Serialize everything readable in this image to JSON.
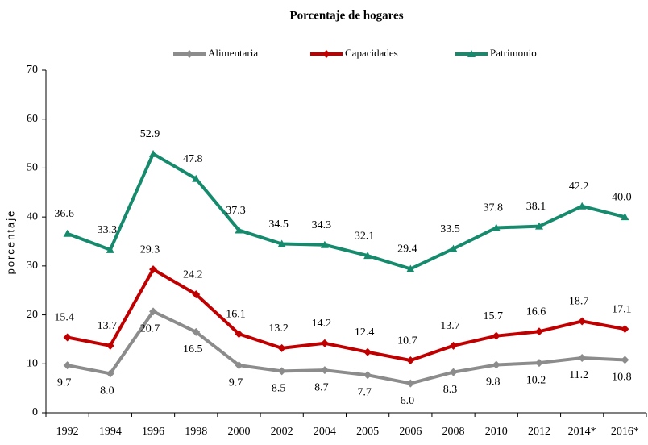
{
  "chart_data": {
    "type": "line",
    "title": "Porcentaje de hogares",
    "y_label": "porcentaje",
    "categories": [
      "1992",
      "1994",
      "1996",
      "1998",
      "2000",
      "2002",
      "2004",
      "2005",
      "2006",
      "2008",
      "2010",
      "2012",
      "2014*",
      "2016*"
    ],
    "series": [
      {
        "name": "Alimentaria",
        "color": "#8c8c8c",
        "label_position": "below",
        "values": [
          9.7,
          8.0,
          20.7,
          16.5,
          9.7,
          8.5,
          8.7,
          7.7,
          6.0,
          8.3,
          9.8,
          10.2,
          11.2,
          10.8
        ],
        "value_labels": [
          "9.7",
          "8.0",
          "20.7",
          "16.5",
          "9.7",
          "8.5",
          "8.7",
          "7.7",
          "6.0",
          "8.3",
          "9.8",
          "10.2",
          "11.2",
          "10.8"
        ]
      },
      {
        "name": "Capacidades",
        "color": "#c00000",
        "label_position": "above",
        "values": [
          15.4,
          13.7,
          29.3,
          24.2,
          16.1,
          13.2,
          14.2,
          12.4,
          10.7,
          13.7,
          15.7,
          16.6,
          18.7,
          17.1
        ],
        "value_labels": [
          "15.4",
          "13.7",
          "29.3",
          "24.2",
          "16.1",
          "13.2",
          "14.2",
          "12.4",
          "10.7",
          "13.7",
          "15.7",
          "16.6",
          "18.7",
          "17.1"
        ]
      },
      {
        "name": "Patrimonio",
        "color": "#168a6c",
        "label_position": "above",
        "values": [
          36.6,
          33.3,
          52.9,
          47.8,
          37.3,
          34.5,
          34.3,
          32.1,
          29.4,
          33.5,
          37.8,
          38.1,
          42.2,
          40.0
        ],
        "value_labels": [
          "36.6",
          "33.3",
          "52.9",
          "47.8",
          "37.3",
          "34.5",
          "34.3",
          "32.1",
          "29.4",
          "33.5",
          "37.8",
          "38.1",
          "42.2",
          "40.0"
        ]
      }
    ],
    "ylim": [
      0,
      70
    ],
    "yticks": [
      0,
      10,
      20,
      30,
      40,
      50,
      60,
      70
    ],
    "legend": "top"
  }
}
